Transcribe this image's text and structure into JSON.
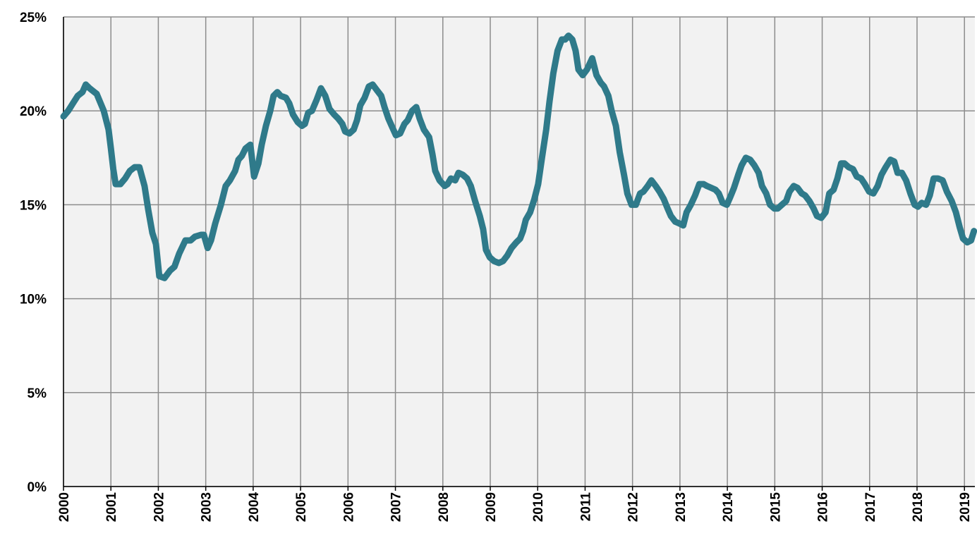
{
  "chart_data": {
    "type": "line",
    "color": "#2f7a8a",
    "grid": true,
    "x": [
      2000.0,
      2000.1,
      2000.2,
      2000.3,
      2000.4,
      2000.47,
      2000.55,
      2000.7,
      2000.85,
      2000.95,
      2001.0,
      2001.05,
      2001.1,
      2001.2,
      2001.3,
      2001.4,
      2001.5,
      2001.6,
      2001.71,
      2001.79,
      2001.875,
      2001.95,
      2002.02,
      2002.13,
      2002.25,
      2002.34,
      2002.44,
      2002.57,
      2002.68,
      2002.77,
      2002.9,
      2002.96,
      2003.04,
      2003.11,
      2003.2,
      2003.32,
      2003.42,
      2003.51,
      2003.62,
      2003.69,
      2003.76,
      2003.84,
      2003.94,
      2004.02,
      2004.11,
      2004.18,
      2004.27,
      2004.36,
      2004.43,
      2004.51,
      2004.58,
      2004.69,
      2004.76,
      2004.84,
      2004.94,
      2005.03,
      2005.09,
      2005.16,
      2005.24,
      2005.34,
      2005.43,
      2005.52,
      2005.61,
      2005.71,
      2005.79,
      2005.88,
      2005.94,
      2006.03,
      2006.12,
      2006.19,
      2006.26,
      2006.35,
      2006.44,
      2006.52,
      2006.61,
      2006.7,
      2006.77,
      2006.85,
      2006.92,
      2007.01,
      2007.1,
      2007.19,
      2007.26,
      2007.35,
      2007.44,
      2007.51,
      2007.6,
      2007.71,
      2007.78,
      2007.84,
      2007.93,
      2008.04,
      2008.1,
      2008.17,
      2008.26,
      2008.33,
      2008.42,
      2008.51,
      2008.59,
      2008.68,
      2008.78,
      2008.85,
      2008.91,
      2008.99,
      2009.08,
      2009.18,
      2009.27,
      2009.36,
      2009.45,
      2009.55,
      2009.63,
      2009.69,
      2009.75,
      2009.84,
      2009.93,
      2010.01,
      2010.09,
      2010.18,
      2010.25,
      2010.33,
      2010.42,
      2010.51,
      2010.58,
      2010.65,
      2010.73,
      2010.8,
      2010.86,
      2010.95,
      2011.04,
      2011.15,
      2011.24,
      2011.33,
      2011.4,
      2011.49,
      2011.56,
      2011.65,
      2011.73,
      2011.82,
      2011.89,
      2011.98,
      2012.07,
      2012.16,
      2012.23,
      2012.32,
      2012.4,
      2012.49,
      2012.57,
      2012.66,
      2012.74,
      2012.81,
      2012.9,
      2012.99,
      2013.07,
      2013.14,
      2013.23,
      2013.32,
      2013.41,
      2013.5,
      2013.57,
      2013.66,
      2013.75,
      2013.82,
      2013.9,
      2013.99,
      2014.06,
      2014.14,
      2014.23,
      2014.3,
      2014.39,
      2014.48,
      2014.57,
      2014.66,
      2014.73,
      2014.82,
      2014.9,
      2014.99,
      2015.06,
      2015.15,
      2015.24,
      2015.31,
      2015.4,
      2015.48,
      2015.57,
      2015.64,
      2015.73,
      2015.82,
      2015.89,
      2015.98,
      2016.07,
      2016.15,
      2016.24,
      2016.32,
      2016.4,
      2016.47,
      2016.56,
      2016.65,
      2016.73,
      2016.82,
      2016.9,
      2016.99,
      2017.08,
      2017.17,
      2017.25,
      2017.34,
      2017.44,
      2017.52,
      2017.59,
      2017.68,
      2017.77,
      2017.86,
      2017.95,
      2018.02,
      2018.1,
      2018.19,
      2018.27,
      2018.35,
      2018.44,
      2018.54,
      2018.63,
      2018.73,
      2018.82,
      2018.9,
      2018.97,
      2019.06,
      2019.14,
      2019.2
    ],
    "values": [
      19.7,
      20.0,
      20.4,
      20.8,
      21.0,
      21.4,
      21.2,
      20.9,
      20.0,
      19.0,
      18.0,
      16.9,
      16.1,
      16.1,
      16.4,
      16.8,
      17.0,
      17.0,
      16.0,
      14.7,
      13.5,
      12.9,
      11.2,
      11.1,
      11.5,
      11.7,
      12.4,
      13.1,
      13.1,
      13.3,
      13.4,
      13.4,
      12.7,
      13.1,
      14.0,
      15.0,
      16.0,
      16.3,
      16.8,
      17.4,
      17.6,
      18.0,
      18.2,
      16.5,
      17.2,
      18.2,
      19.2,
      20.0,
      20.8,
      21.0,
      20.8,
      20.7,
      20.4,
      19.8,
      19.4,
      19.2,
      19.3,
      19.9,
      20.0,
      20.6,
      21.2,
      20.8,
      20.1,
      19.8,
      19.6,
      19.3,
      18.9,
      18.8,
      19.0,
      19.5,
      20.3,
      20.7,
      21.3,
      21.4,
      21.1,
      20.8,
      20.2,
      19.6,
      19.2,
      18.7,
      18.8,
      19.3,
      19.5,
      20.0,
      20.2,
      19.6,
      19.0,
      18.6,
      17.7,
      16.8,
      16.3,
      16.0,
      16.1,
      16.4,
      16.3,
      16.7,
      16.6,
      16.4,
      16.0,
      15.2,
      14.4,
      13.7,
      12.6,
      12.2,
      12.0,
      11.9,
      12.0,
      12.3,
      12.7,
      13.0,
      13.2,
      13.6,
      14.2,
      14.6,
      15.3,
      16.1,
      17.5,
      19.0,
      20.5,
      22.0,
      23.2,
      23.8,
      23.8,
      24.0,
      23.8,
      23.2,
      22.2,
      21.9,
      22.2,
      22.8,
      21.9,
      21.5,
      21.3,
      20.8,
      20.0,
      19.2,
      17.8,
      16.6,
      15.6,
      15.0,
      15.0,
      15.6,
      15.7,
      16.0,
      16.3,
      16.0,
      15.7,
      15.3,
      14.8,
      14.4,
      14.1,
      14.0,
      13.9,
      14.6,
      15.0,
      15.5,
      16.1,
      16.1,
      16.0,
      15.9,
      15.8,
      15.6,
      15.1,
      15.0,
      15.4,
      15.9,
      16.6,
      17.1,
      17.5,
      17.4,
      17.1,
      16.7,
      16.0,
      15.6,
      15.0,
      14.8,
      14.8,
      15.0,
      15.2,
      15.7,
      16.0,
      15.9,
      15.6,
      15.5,
      15.2,
      14.8,
      14.4,
      14.3,
      14.6,
      15.6,
      15.8,
      16.4,
      17.2,
      17.2,
      17.0,
      16.9,
      16.5,
      16.4,
      16.1,
      15.7,
      15.6,
      16.0,
      16.6,
      17.0,
      17.4,
      17.3,
      16.7,
      16.7,
      16.3,
      15.6,
      15.0,
      14.9,
      15.1,
      15.0,
      15.5,
      16.4,
      16.4,
      16.3,
      15.7,
      15.2,
      14.6,
      13.8,
      13.2,
      13.0,
      13.1,
      13.6
    ],
    "xlim": [
      2000,
      2019.22
    ],
    "xticks": [
      2000,
      2001,
      2002,
      2003,
      2004,
      2005,
      2006,
      2007,
      2008,
      2009,
      2010,
      2011,
      2012,
      2013,
      2014,
      2015,
      2016,
      2017,
      2018,
      2019
    ],
    "ylim": [
      0,
      25
    ],
    "yticks": [
      {
        "value": 0,
        "label": "0%"
      },
      {
        "value": 5,
        "label": "5%"
      },
      {
        "value": 10,
        "label": "10%"
      },
      {
        "value": 15,
        "label": "15%"
      },
      {
        "value": 20,
        "label": "20%"
      },
      {
        "value": 25,
        "label": "25%"
      }
    ]
  }
}
